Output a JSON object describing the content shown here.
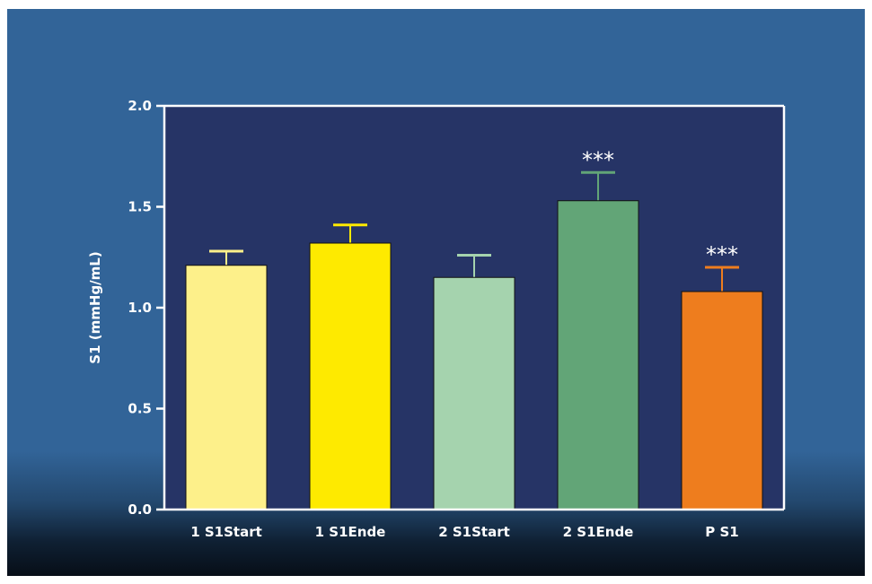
{
  "chart_data": {
    "type": "bar",
    "categories": [
      "1 S1Start",
      "1 S1Ende",
      "2 S1Start",
      "2 S1Ende",
      "P S1"
    ],
    "values": [
      1.21,
      1.32,
      1.15,
      1.53,
      1.08
    ],
    "errors": [
      0.07,
      0.09,
      0.11,
      0.14,
      0.12
    ],
    "annotations": [
      "",
      "",
      "",
      "***",
      "***"
    ],
    "colors": [
      "#fdf08a",
      "#feea00",
      "#a5d3ae",
      "#62a577",
      "#ee7d1e"
    ],
    "error_colors": [
      "#fdf08a",
      "#feea00",
      "#a5d3ae",
      "#62a577",
      "#ee7d1e"
    ],
    "xlabel": "",
    "ylabel": "S1 (mmHg/mL)",
    "ylim": [
      0,
      2.0
    ],
    "yticks": [
      "0.0",
      "0.5",
      "1.0",
      "1.5",
      "2.0"
    ],
    "plot_background": "#263466",
    "grid": false
  }
}
